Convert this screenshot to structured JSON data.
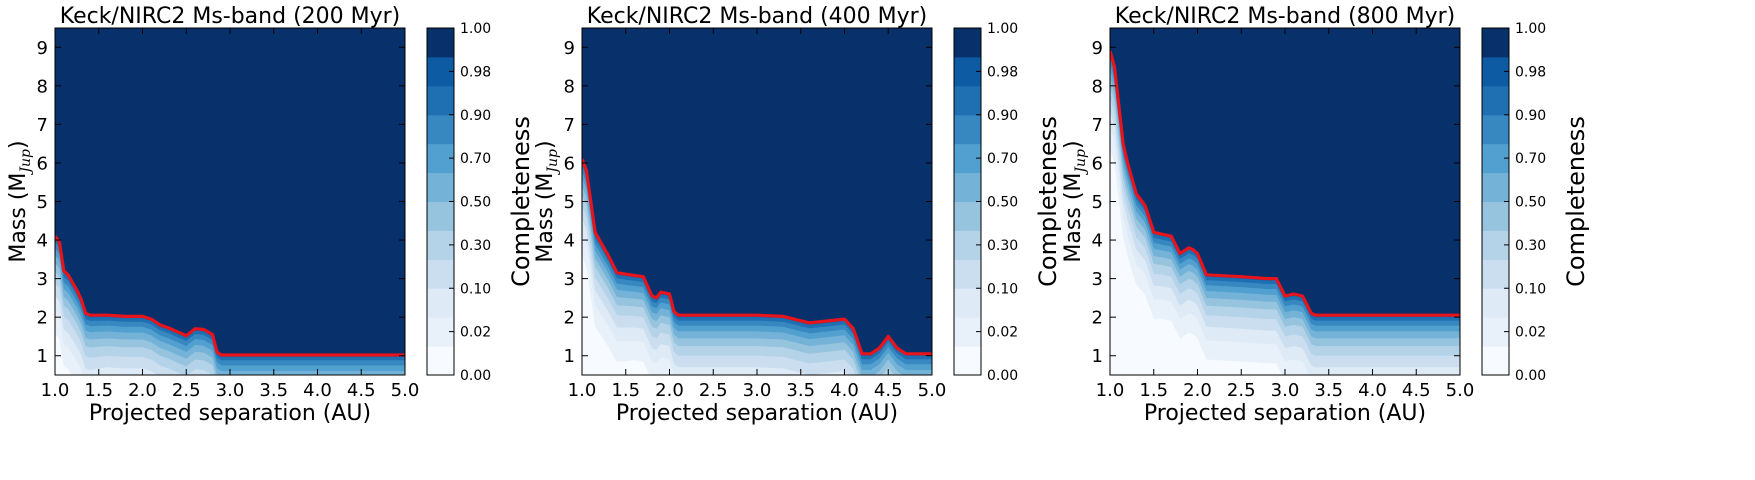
{
  "colorbar": {
    "label": "Completeness",
    "ticks": [
      "0.00",
      "0.02",
      "0.10",
      "0.30",
      "0.50",
      "0.70",
      "0.90",
      "0.98",
      "1.00"
    ],
    "colors": [
      "#f7fbff",
      "#e8f1fa",
      "#deebf7",
      "#cadef0",
      "#b4d3e9",
      "#96c4df",
      "#74b2d8",
      "#52a0cf",
      "#3787c0",
      "#1f6fb3",
      "#0c5ba3",
      "#08306b"
    ]
  },
  "chart_data": [
    {
      "type": "heatmap",
      "title": "Keck/NIRC2 Ms-band (200 Myr)",
      "xlabel": "Projected separation (AU)",
      "ylabel": "Mass (M",
      "ylabel_sub": "Jup",
      "xlim": [
        1.0,
        5.0
      ],
      "ylim": [
        0.5,
        9.5
      ],
      "xticks": [
        "1.0",
        "1.5",
        "2.0",
        "2.5",
        "3.0",
        "3.5",
        "4.0",
        "4.5",
        "5.0"
      ],
      "yticks": [
        "1",
        "2",
        "3",
        "4",
        "5",
        "6",
        "7",
        "8",
        "9"
      ],
      "contour_color": "#e8141c",
      "contour_90": {
        "x": [
          1.0,
          1.05,
          1.1,
          1.15,
          1.2,
          1.25,
          1.3,
          1.35,
          1.4,
          1.6,
          1.8,
          2.0,
          2.1,
          2.2,
          2.3,
          2.4,
          2.5,
          2.6,
          2.7,
          2.8,
          2.85,
          2.9,
          3.5,
          4.0,
          4.5,
          5.0
        ],
        "y": [
          4.1,
          3.95,
          3.2,
          3.1,
          2.9,
          2.7,
          2.45,
          2.1,
          2.05,
          2.05,
          2.02,
          2.02,
          1.95,
          1.8,
          1.72,
          1.62,
          1.52,
          1.7,
          1.68,
          1.55,
          1.1,
          1.02,
          1.02,
          1.02,
          1.02,
          1.02
        ]
      }
    },
    {
      "type": "heatmap",
      "title": "Keck/NIRC2 Ms-band (400 Myr)",
      "xlabel": "Projected separation (AU)",
      "ylabel": "Mass (M",
      "ylabel_sub": "Jup",
      "xlim": [
        1.0,
        5.0
      ],
      "ylim": [
        0.5,
        9.5
      ],
      "xticks": [
        "1.0",
        "1.5",
        "2.0",
        "2.5",
        "3.0",
        "3.5",
        "4.0",
        "4.5",
        "5.0"
      ],
      "yticks": [
        "1",
        "2",
        "3",
        "4",
        "5",
        "6",
        "7",
        "8",
        "9"
      ],
      "contour_color": "#e8141c",
      "contour_90": {
        "x": [
          1.0,
          1.05,
          1.1,
          1.15,
          1.2,
          1.3,
          1.4,
          1.6,
          1.7,
          1.8,
          1.85,
          1.9,
          2.0,
          2.05,
          2.1,
          2.5,
          3.0,
          3.3,
          3.6,
          3.8,
          4.0,
          4.1,
          4.2,
          4.3,
          4.4,
          4.5,
          4.6,
          4.7,
          5.0
        ],
        "y": [
          6.1,
          5.8,
          5.0,
          4.2,
          4.0,
          3.6,
          3.15,
          3.08,
          3.05,
          2.55,
          2.5,
          2.65,
          2.6,
          2.15,
          2.05,
          2.05,
          2.05,
          2.02,
          1.85,
          1.9,
          1.95,
          1.7,
          1.05,
          1.05,
          1.2,
          1.5,
          1.2,
          1.05,
          1.05
        ]
      }
    },
    {
      "type": "heatmap",
      "title": "Keck/NIRC2 Ms-band (800 Myr)",
      "xlabel": "Projected separation (AU)",
      "ylabel": "Mass (M",
      "ylabel_sub": "Jup",
      "xlim": [
        1.0,
        5.0
      ],
      "ylim": [
        0.5,
        9.5
      ],
      "xticks": [
        "1.0",
        "1.5",
        "2.0",
        "2.5",
        "3.0",
        "3.5",
        "4.0",
        "4.5",
        "5.0"
      ],
      "yticks": [
        "1",
        "2",
        "3",
        "4",
        "5",
        "6",
        "7",
        "8",
        "9"
      ],
      "contour_color": "#e8141c",
      "contour_90": {
        "x": [
          1.0,
          1.05,
          1.1,
          1.15,
          1.2,
          1.3,
          1.4,
          1.5,
          1.6,
          1.7,
          1.8,
          1.9,
          1.95,
          2.0,
          2.1,
          2.5,
          2.8,
          2.9,
          3.0,
          3.1,
          3.2,
          3.3,
          3.35,
          3.5,
          4.0,
          4.5,
          5.0
        ],
        "y": [
          8.9,
          8.5,
          7.5,
          6.5,
          6.0,
          5.2,
          4.9,
          4.2,
          4.15,
          4.1,
          3.65,
          3.8,
          3.75,
          3.65,
          3.1,
          3.05,
          3.0,
          3.0,
          2.55,
          2.6,
          2.55,
          2.1,
          2.05,
          2.05,
          2.05,
          2.05,
          2.05
        ]
      }
    }
  ]
}
